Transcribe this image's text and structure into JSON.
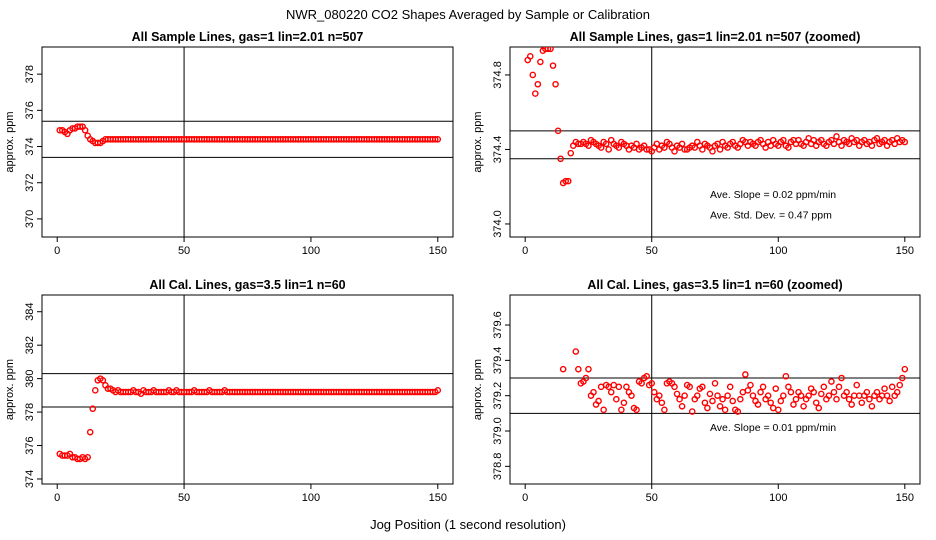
{
  "figure": {
    "title": "NWR_080220  CO2 Shapes Averaged by Sample or Calibration",
    "xlabel": "Jog Position (1 second resolution)"
  },
  "colors": {
    "points": "#ff0000",
    "axes": "#000000"
  },
  "chart_data": [
    {
      "type": "scatter",
      "title": "All Sample Lines, gas=1 lin=2.01 n=507",
      "ylabel": "approx. ppm",
      "xlim": [
        0,
        150
      ],
      "ylim": [
        369.0,
        379.5
      ],
      "xticks": [
        0,
        50,
        100,
        150
      ],
      "yticks": [
        370,
        372,
        374,
        376,
        378
      ],
      "ref_vline": 50,
      "ref_hlines": [
        373.4,
        375.4
      ],
      "grid": false,
      "annotations": [],
      "series": [
        {
          "values": [
            374.9,
            374.9,
            374.8,
            374.7,
            374.9,
            375.0,
            375.0,
            375.1,
            375.1,
            375.1,
            374.9,
            374.6,
            374.4,
            374.3,
            374.2,
            374.2,
            374.2,
            374.3,
            374.4,
            374.4,
            374.4,
            374.4,
            374.4,
            374.4,
            374.4,
            374.4,
            374.4,
            374.4,
            374.4,
            374.4,
            374.4,
            374.4,
            374.4,
            374.4,
            374.4,
            374.4,
            374.4,
            374.4,
            374.4,
            374.4,
            374.4,
            374.4,
            374.4,
            374.4,
            374.4,
            374.4,
            374.4,
            374.4,
            374.4,
            374.4,
            374.4,
            374.4,
            374.4,
            374.4,
            374.4,
            374.4,
            374.4,
            374.4,
            374.4,
            374.4,
            374.4,
            374.4,
            374.4,
            374.4,
            374.4,
            374.4,
            374.4,
            374.4,
            374.4,
            374.4,
            374.4,
            374.4,
            374.4,
            374.4,
            374.4,
            374.4,
            374.4,
            374.4,
            374.4,
            374.4,
            374.4,
            374.4,
            374.4,
            374.4,
            374.4,
            374.4,
            374.4,
            374.4,
            374.4,
            374.4,
            374.4,
            374.4,
            374.4,
            374.4,
            374.4,
            374.4,
            374.4,
            374.4,
            374.4,
            374.4,
            374.4,
            374.4,
            374.4,
            374.4,
            374.4,
            374.4,
            374.4,
            374.4,
            374.4,
            374.4,
            374.4,
            374.4,
            374.4,
            374.4,
            374.4,
            374.4,
            374.4,
            374.4,
            374.4,
            374.4,
            374.4,
            374.4,
            374.4,
            374.4,
            374.4,
            374.4,
            374.4,
            374.4,
            374.4,
            374.4,
            374.4,
            374.4,
            374.4,
            374.4,
            374.4,
            374.4,
            374.4,
            374.4,
            374.4,
            374.4,
            374.4,
            374.4,
            374.4,
            374.4,
            374.4,
            374.4,
            374.4,
            374.4,
            374.4,
            374.4
          ]
        }
      ]
    },
    {
      "type": "scatter",
      "title": "All Sample Lines, gas=1 lin=2.01 n=507 (zoomed)",
      "ylabel": "approx. ppm",
      "xlim": [
        0,
        150
      ],
      "ylim": [
        373.93,
        374.95
      ],
      "xticks": [
        0,
        50,
        100,
        150
      ],
      "yticks": [
        374.0,
        374.4,
        374.8
      ],
      "ref_vline": 50,
      "ref_hlines": [
        374.35,
        374.5
      ],
      "grid": false,
      "annotations": [
        {
          "text": "Ave. Slope =  0.02  ppm/min",
          "x": 73,
          "y": 374.14
        },
        {
          "text": "Ave. Std. Dev. =  0.47  ppm",
          "x": 73,
          "y": 374.03
        }
      ],
      "series": [
        {
          "values": [
            374.88,
            374.9,
            374.8,
            374.7,
            374.75,
            374.87,
            374.93,
            374.94,
            374.94,
            374.94,
            374.85,
            374.75,
            374.5,
            374.35,
            374.22,
            374.23,
            374.23,
            374.38,
            374.42,
            374.44,
            374.43,
            374.43,
            374.44,
            374.43,
            374.42,
            374.45,
            374.44,
            374.43,
            374.42,
            374.41,
            374.44,
            374.43,
            374.4,
            374.45,
            374.43,
            374.42,
            374.41,
            374.44,
            374.43,
            374.42,
            374.4,
            374.42,
            374.41,
            374.43,
            374.4,
            374.41,
            374.42,
            374.4,
            374.4,
            374.39,
            374.41,
            374.43,
            374.4,
            374.42,
            374.41,
            374.44,
            374.43,
            374.41,
            374.39,
            374.42,
            374.41,
            374.43,
            374.4,
            374.4,
            374.41,
            374.42,
            374.41,
            374.44,
            374.42,
            374.4,
            374.43,
            374.42,
            374.41,
            374.39,
            374.42,
            374.43,
            374.4,
            374.44,
            374.42,
            374.41,
            374.43,
            374.44,
            374.42,
            374.41,
            374.43,
            374.45,
            374.44,
            374.42,
            374.44,
            374.43,
            374.42,
            374.44,
            374.45,
            374.43,
            374.41,
            374.44,
            374.42,
            374.45,
            374.43,
            374.42,
            374.44,
            374.45,
            374.42,
            374.41,
            374.44,
            374.45,
            374.43,
            374.45,
            374.43,
            374.42,
            374.44,
            374.46,
            374.43,
            374.45,
            374.42,
            374.44,
            374.45,
            374.43,
            374.42,
            374.44,
            374.45,
            374.43,
            374.47,
            374.44,
            374.42,
            374.45,
            374.44,
            374.43,
            374.46,
            374.44,
            374.45,
            374.42,
            374.44,
            374.45,
            374.43,
            374.44,
            374.42,
            374.45,
            374.46,
            374.43,
            374.44,
            374.45,
            374.42,
            374.44,
            374.45,
            374.43,
            374.46,
            374.44,
            374.45,
            374.44
          ]
        }
      ]
    },
    {
      "type": "scatter",
      "title": "All Cal. Lines, gas=3.5 lin=1 n=60",
      "ylabel": "approx. ppm",
      "xlim": [
        0,
        150
      ],
      "ylim": [
        373.7,
        385.0
      ],
      "xticks": [
        0,
        50,
        100,
        150
      ],
      "yticks": [
        374,
        376,
        378,
        380,
        382,
        384
      ],
      "ref_vline": 50,
      "ref_hlines": [
        378.3,
        380.3
      ],
      "grid": false,
      "annotations": [],
      "series": [
        {
          "values": [
            375.5,
            375.4,
            375.4,
            375.4,
            375.5,
            375.3,
            375.3,
            375.2,
            375.2,
            375.3,
            375.2,
            375.3,
            376.8,
            378.2,
            379.3,
            379.9,
            380.0,
            379.9,
            379.6,
            379.4,
            379.4,
            379.3,
            379.2,
            379.3,
            379.2,
            379.2,
            379.2,
            379.2,
            379.2,
            379.3,
            379.2,
            379.2,
            379.1,
            379.3,
            379.2,
            379.2,
            379.2,
            379.3,
            379.2,
            379.2,
            379.2,
            379.2,
            379.2,
            379.3,
            379.2,
            379.2,
            379.3,
            379.2,
            379.2,
            379.2,
            379.2,
            379.2,
            379.2,
            379.3,
            379.2,
            379.2,
            379.2,
            379.2,
            379.2,
            379.3,
            379.2,
            379.2,
            379.2,
            379.2,
            379.2,
            379.3,
            379.2,
            379.2,
            379.2,
            379.2,
            379.2,
            379.2,
            379.2,
            379.2,
            379.2,
            379.2,
            379.2,
            379.2,
            379.2,
            379.2,
            379.2,
            379.2,
            379.2,
            379.2,
            379.2,
            379.2,
            379.2,
            379.2,
            379.2,
            379.2,
            379.2,
            379.2,
            379.2,
            379.2,
            379.2,
            379.2,
            379.2,
            379.2,
            379.2,
            379.2,
            379.2,
            379.2,
            379.2,
            379.2,
            379.2,
            379.2,
            379.2,
            379.2,
            379.2,
            379.2,
            379.2,
            379.2,
            379.2,
            379.2,
            379.2,
            379.2,
            379.2,
            379.2,
            379.2,
            379.2,
            379.2,
            379.2,
            379.2,
            379.2,
            379.2,
            379.2,
            379.2,
            379.2,
            379.2,
            379.2,
            379.2,
            379.2,
            379.2,
            379.2,
            379.2,
            379.2,
            379.2,
            379.2,
            379.2,
            379.2,
            379.2,
            379.2,
            379.2,
            379.2,
            379.2,
            379.2,
            379.2,
            379.2,
            379.2,
            379.3
          ]
        }
      ]
    },
    {
      "type": "scatter",
      "title": "All Cal. Lines, gas=3.5 lin=1 n=60 (zoomed)",
      "ylabel": "approx. ppm",
      "xlim": [
        0,
        150
      ],
      "ylim": [
        378.7,
        379.77
      ],
      "xticks": [
        0,
        50,
        100,
        150
      ],
      "yticks": [
        378.8,
        379.0,
        379.2,
        379.4,
        379.6
      ],
      "ref_vline": 50,
      "ref_hlines": [
        379.1,
        379.3
      ],
      "grid": false,
      "annotations": [
        {
          "text": "Ave. Slope =  0.01  ppm/min",
          "x": 73,
          "y": 379.0
        }
      ],
      "series": [
        {
          "x": [
            15,
            20,
            21,
            22,
            23,
            24,
            25,
            26,
            27,
            28,
            29,
            30,
            31,
            32,
            33,
            34,
            35,
            36,
            37,
            38,
            39,
            40,
            41,
            42,
            43,
            44,
            45,
            46,
            47,
            48,
            49,
            50,
            51,
            52,
            53,
            54,
            55,
            56,
            57,
            58,
            59,
            60,
            61,
            62,
            63,
            64,
            65,
            66,
            67,
            68,
            69,
            70,
            71,
            72,
            73,
            74,
            75,
            76,
            77,
            78,
            79,
            80,
            81,
            82,
            83,
            84,
            85,
            86,
            87,
            88,
            89,
            90,
            91,
            92,
            93,
            94,
            95,
            96,
            97,
            98,
            99,
            100,
            101,
            102,
            103,
            104,
            105,
            106,
            107,
            108,
            109,
            110,
            111,
            112,
            113,
            114,
            115,
            116,
            117,
            118,
            119,
            120,
            121,
            122,
            123,
            124,
            125,
            126,
            127,
            128,
            129,
            130,
            131,
            132,
            133,
            134,
            135,
            136,
            137,
            138,
            139,
            140,
            141,
            142,
            143,
            144,
            145,
            146,
            147,
            148,
            149,
            150
          ],
          "values": [
            379.35,
            379.45,
            379.35,
            379.27,
            379.28,
            379.3,
            379.35,
            379.2,
            379.22,
            379.15,
            379.17,
            379.25,
            379.12,
            379.26,
            379.25,
            379.22,
            379.26,
            379.18,
            379.25,
            379.12,
            379.16,
            379.25,
            379.22,
            379.2,
            379.13,
            379.12,
            379.28,
            379.27,
            379.3,
            379.31,
            379.26,
            379.27,
            379.22,
            379.18,
            379.2,
            379.16,
            379.12,
            379.27,
            379.28,
            379.27,
            379.25,
            379.21,
            379.18,
            379.14,
            379.2,
            379.26,
            379.25,
            379.11,
            379.18,
            379.2,
            379.24,
            379.25,
            379.16,
            379.13,
            379.21,
            379.17,
            379.27,
            379.2,
            379.14,
            379.18,
            379.12,
            379.2,
            379.25,
            379.17,
            379.12,
            379.11,
            379.18,
            379.22,
            379.32,
            379.23,
            379.26,
            379.2,
            379.17,
            379.15,
            379.22,
            379.25,
            379.18,
            379.2,
            379.16,
            379.13,
            379.24,
            379.12,
            379.17,
            379.2,
            379.31,
            379.25,
            379.22,
            379.15,
            379.18,
            379.22,
            379.2,
            379.14,
            379.18,
            379.2,
            379.24,
            379.22,
            379.16,
            379.13,
            379.21,
            379.25,
            379.18,
            379.2,
            379.28,
            379.22,
            379.18,
            379.25,
            379.3,
            379.2,
            379.22,
            379.18,
            379.15,
            379.2,
            379.26,
            379.2,
            379.16,
            379.2,
            379.22,
            379.18,
            379.14,
            379.2,
            379.22,
            379.18,
            379.2,
            379.24,
            379.2,
            379.17,
            379.25,
            379.2,
            379.22,
            379.26,
            379.3,
            379.35
          ]
        }
      ]
    }
  ]
}
